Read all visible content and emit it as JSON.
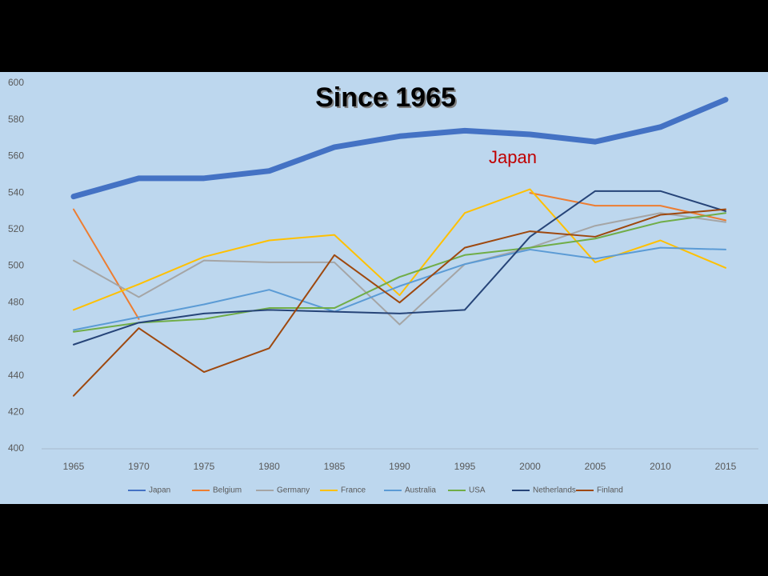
{
  "chart_data": {
    "type": "line",
    "title": "Since 1965",
    "annotation": "Japan",
    "categories": [
      "1965",
      "1970",
      "1975",
      "1980",
      "1985",
      "1990",
      "1995",
      "2000",
      "2005",
      "2010",
      "2015"
    ],
    "ylim": [
      400,
      600
    ],
    "yticks": [
      400,
      420,
      440,
      460,
      480,
      500,
      520,
      540,
      560,
      580,
      600
    ],
    "series": [
      {
        "name": "Japan",
        "color": "#4472c4",
        "values": [
          538,
          548,
          548,
          552,
          565,
          571,
          574,
          572,
          568,
          576,
          591
        ]
      },
      {
        "name": "Belgium",
        "color": "#ed7d31",
        "values": [
          531,
          471,
          null,
          null,
          null,
          null,
          null,
          540,
          533,
          533,
          525
        ]
      },
      {
        "name": "Germany",
        "color": "#a5a5a5",
        "values": [
          503,
          483,
          503,
          502,
          502,
          468,
          501,
          510,
          522,
          529,
          524
        ]
      },
      {
        "name": "France",
        "color": "#ffc000",
        "values": [
          476,
          490,
          505,
          514,
          517,
          484,
          529,
          542,
          502,
          514,
          499
        ]
      },
      {
        "name": "Australia",
        "color": "#5b9bd5",
        "values": [
          465,
          472,
          479,
          487,
          475,
          489,
          501,
          509,
          504,
          510,
          509
        ]
      },
      {
        "name": "USA",
        "color": "#70ad47",
        "values": [
          464,
          469,
          471,
          477,
          477,
          494,
          506,
          510,
          515,
          524,
          529
        ]
      },
      {
        "name": "Netherlands",
        "color": "#264478",
        "values": [
          457,
          469,
          474,
          476,
          475,
          474,
          476,
          516,
          541,
          541,
          530
        ]
      },
      {
        "name": "Finland",
        "color": "#9e480e",
        "values": [
          429,
          466,
          442,
          455,
          506,
          480,
          510,
          519,
          516,
          528,
          531
        ]
      }
    ]
  }
}
